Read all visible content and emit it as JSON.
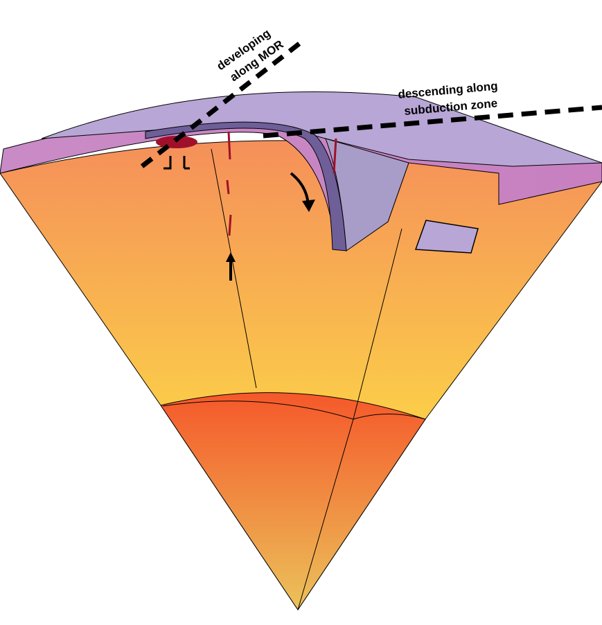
{
  "labels": {
    "mor": [
      "developing",
      "along MOR"
    ],
    "subduction": [
      "descending along",
      "subduction zone"
    ]
  }
}
